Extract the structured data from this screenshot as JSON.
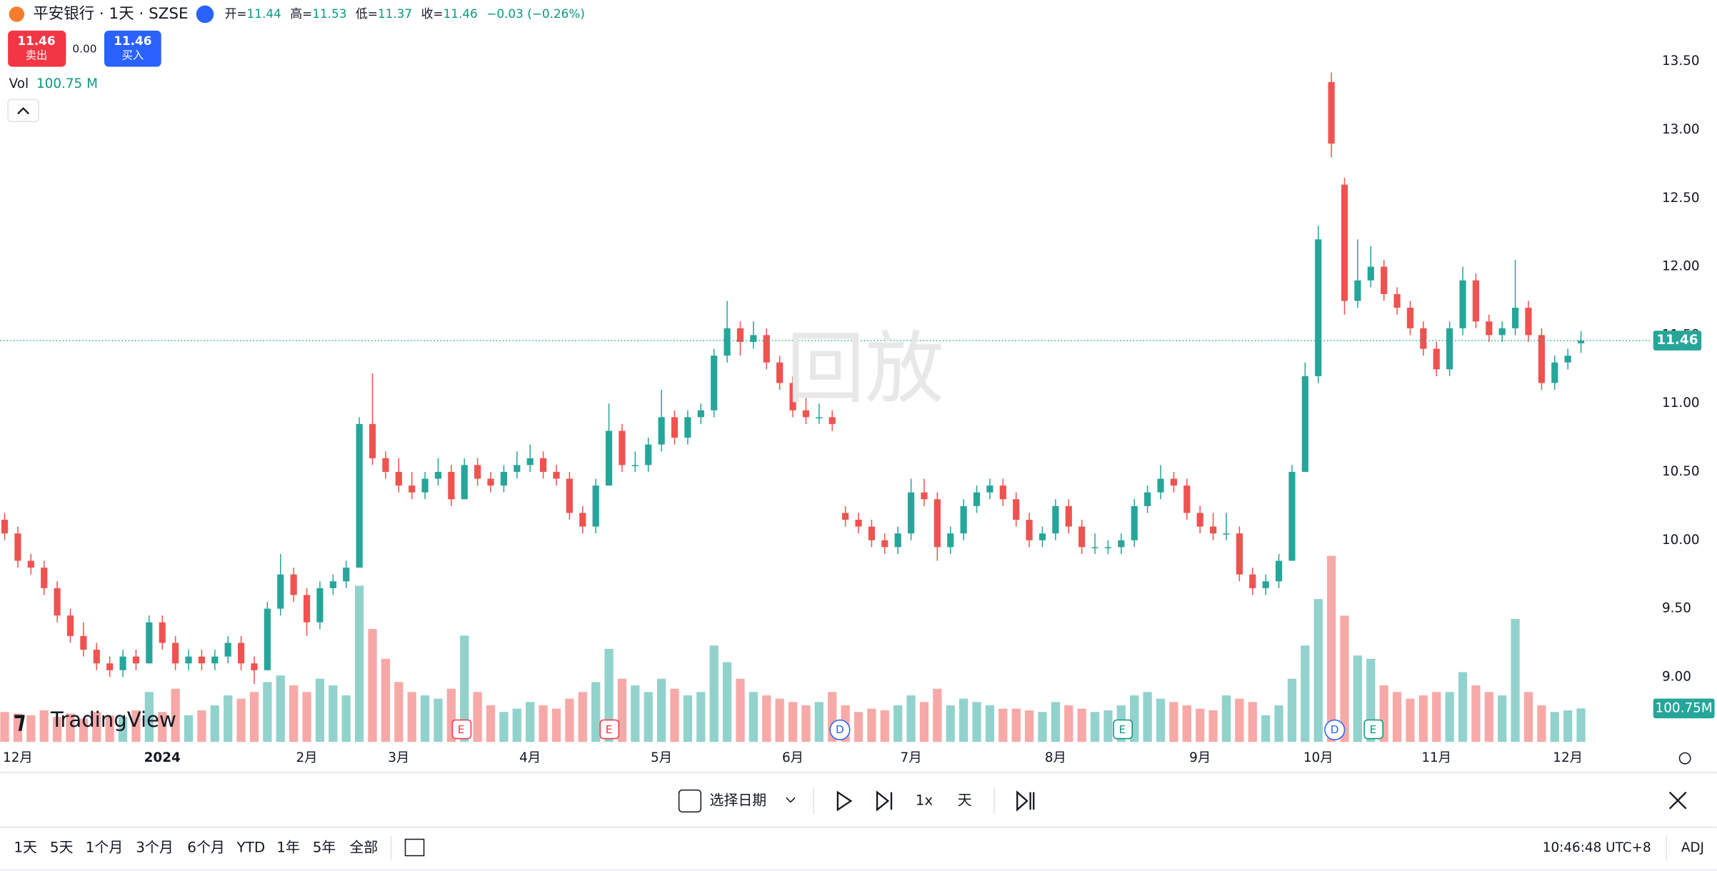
{
  "header": {
    "symbol": "平安银行 · 1天 · SZSE",
    "open_label": "开=",
    "open": 11.44,
    "high_label": "高=",
    "high": 11.53,
    "low_label": "低=",
    "low": 11.37,
    "close_label": "收=",
    "close": 11.46,
    "change": "−0.03 (−0.26%)"
  },
  "trade": {
    "sell_price": "11.46",
    "sell": "卖出",
    "spread": "0.00",
    "buy_price": "11.46",
    "buy": "买入"
  },
  "volume_legend": {
    "label": "Vol",
    "value": "100.75 M"
  },
  "watermark": "回放",
  "logo": "TradingView",
  "events": [
    "E",
    "E",
    "D",
    "E",
    "D",
    "E"
  ],
  "replay_toolbar": {
    "date_button": "选择日期",
    "speed": "1x",
    "interval": "天"
  },
  "ranges": [
    "1天",
    "5天",
    "1个月",
    "3个月",
    "6个月",
    "YTD",
    "1年",
    "5年",
    "全部"
  ],
  "clock": "10:46:48 UTC+8",
  "adj": "ADJ",
  "chart_data": {
    "type": "candlestick",
    "up_color": "#26a69a",
    "down_color": "#ef5350",
    "ylim": [
      8.51,
      13.95
    ],
    "yticks": [
      {
        "value": 13.5,
        "label": "13.50"
      },
      {
        "value": 13,
        "label": "13.00"
      },
      {
        "value": 12.5,
        "label": "12.50"
      },
      {
        "value": 12,
        "label": "12.00"
      },
      {
        "value": 11.5,
        "label": "11.50"
      },
      {
        "value": 11,
        "label": "11.00"
      },
      {
        "value": 10.5,
        "label": "10.50"
      },
      {
        "value": 10,
        "label": "10.00"
      },
      {
        "value": 9.5,
        "label": "9.50"
      },
      {
        "value": 9,
        "label": "9.00"
      }
    ],
    "last_price": 11.46,
    "last_volume_label": "100.75M",
    "categories": [
      null,
      "12月",
      null,
      null,
      null,
      null,
      null,
      null,
      null,
      null,
      null,
      null,
      "2024",
      null,
      null,
      null,
      null,
      null,
      null,
      null,
      null,
      null,
      null,
      "2月",
      null,
      null,
      null,
      null,
      null,
      null,
      "3月",
      null,
      null,
      null,
      null,
      null,
      null,
      null,
      null,
      null,
      "4月",
      null,
      null,
      null,
      null,
      null,
      null,
      null,
      null,
      null,
      "5月",
      null,
      null,
      null,
      null,
      null,
      null,
      null,
      null,
      null,
      "6月",
      null,
      null,
      null,
      null,
      null,
      null,
      null,
      null,
      "7月",
      null,
      null,
      null,
      null,
      null,
      null,
      null,
      null,
      null,
      null,
      "8月",
      null,
      null,
      null,
      null,
      null,
      null,
      null,
      null,
      null,
      null,
      "9月",
      null,
      null,
      null,
      null,
      null,
      null,
      null,
      null,
      "10月",
      null,
      null,
      null,
      null,
      null,
      null,
      null,
      null,
      "11月",
      null,
      null,
      null,
      null,
      null,
      null,
      null,
      null,
      null,
      "12月",
      null
    ],
    "candles": [
      [
        10.15,
        10.2,
        10.0,
        10.05
      ],
      [
        10.05,
        10.1,
        9.8,
        9.85
      ],
      [
        9.85,
        9.9,
        9.75,
        9.8
      ],
      [
        9.8,
        9.85,
        9.6,
        9.65
      ],
      [
        9.65,
        9.7,
        9.4,
        9.45
      ],
      [
        9.45,
        9.5,
        9.25,
        9.3
      ],
      [
        9.3,
        9.4,
        9.15,
        9.2
      ],
      [
        9.2,
        9.25,
        9.05,
        9.1
      ],
      [
        9.1,
        9.15,
        9.0,
        9.05
      ],
      [
        9.05,
        9.2,
        9.0,
        9.15
      ],
      [
        9.15,
        9.2,
        9.05,
        9.1
      ],
      [
        9.1,
        9.45,
        9.1,
        9.4
      ],
      [
        9.4,
        9.45,
        9.2,
        9.25
      ],
      [
        9.25,
        9.3,
        9.05,
        9.1
      ],
      [
        9.1,
        9.2,
        9.05,
        9.15
      ],
      [
        9.15,
        9.2,
        9.05,
        9.1
      ],
      [
        9.1,
        9.2,
        9.05,
        9.15
      ],
      [
        9.15,
        9.3,
        9.1,
        9.25
      ],
      [
        9.25,
        9.3,
        9.05,
        9.1
      ],
      [
        9.1,
        9.15,
        8.95,
        9.05
      ],
      [
        9.05,
        9.55,
        9.05,
        9.5
      ],
      [
        9.5,
        9.9,
        9.45,
        9.75
      ],
      [
        9.75,
        9.8,
        9.55,
        9.6
      ],
      [
        9.6,
        9.65,
        9.3,
        9.4
      ],
      [
        9.4,
        9.7,
        9.35,
        9.65
      ],
      [
        9.65,
        9.75,
        9.6,
        9.7
      ],
      [
        9.7,
        9.85,
        9.65,
        9.8
      ],
      [
        9.8,
        10.9,
        9.8,
        10.85
      ],
      [
        10.85,
        11.22,
        10.55,
        10.6
      ],
      [
        10.6,
        10.65,
        10.45,
        10.5
      ],
      [
        10.5,
        10.6,
        10.35,
        10.4
      ],
      [
        10.4,
        10.5,
        10.3,
        10.35
      ],
      [
        10.35,
        10.5,
        10.3,
        10.45
      ],
      [
        10.45,
        10.6,
        10.4,
        10.5
      ],
      [
        10.5,
        10.55,
        10.25,
        10.3
      ],
      [
        10.3,
        10.6,
        10.3,
        10.55
      ],
      [
        10.55,
        10.6,
        10.4,
        10.45
      ],
      [
        10.45,
        10.5,
        10.35,
        10.4
      ],
      [
        10.4,
        10.55,
        10.35,
        10.5
      ],
      [
        10.5,
        10.65,
        10.45,
        10.55
      ],
      [
        10.55,
        10.7,
        10.5,
        10.6
      ],
      [
        10.6,
        10.65,
        10.45,
        10.5
      ],
      [
        10.5,
        10.55,
        10.4,
        10.45
      ],
      [
        10.45,
        10.5,
        10.15,
        10.2
      ],
      [
        10.2,
        10.25,
        10.05,
        10.1
      ],
      [
        10.1,
        10.45,
        10.05,
        10.4
      ],
      [
        10.4,
        11.0,
        10.4,
        10.8
      ],
      [
        10.8,
        10.85,
        10.5,
        10.55
      ],
      [
        10.55,
        10.65,
        10.5,
        10.55
      ],
      [
        10.55,
        10.75,
        10.5,
        10.7
      ],
      [
        10.7,
        11.1,
        10.65,
        10.9
      ],
      [
        10.9,
        10.95,
        10.7,
        10.75
      ],
      [
        10.75,
        10.95,
        10.7,
        10.9
      ],
      [
        10.9,
        11.0,
        10.85,
        10.95
      ],
      [
        10.95,
        11.4,
        10.9,
        11.35
      ],
      [
        11.35,
        11.75,
        11.3,
        11.55
      ],
      [
        11.55,
        11.6,
        11.35,
        11.45
      ],
      [
        11.45,
        11.6,
        11.4,
        11.5
      ],
      [
        11.5,
        11.55,
        11.25,
        11.3
      ],
      [
        11.3,
        11.35,
        11.1,
        11.15
      ],
      [
        11.15,
        11.2,
        10.9,
        10.95
      ],
      [
        10.95,
        11.05,
        10.85,
        10.9
      ],
      [
        10.9,
        11.0,
        10.85,
        10.9
      ],
      [
        10.9,
        10.95,
        10.8,
        10.85
      ],
      [
        10.2,
        10.25,
        10.1,
        10.15
      ],
      [
        10.15,
        10.2,
        10.05,
        10.1
      ],
      [
        10.1,
        10.15,
        9.95,
        10.0
      ],
      [
        10.0,
        10.05,
        9.9,
        9.95
      ],
      [
        9.95,
        10.1,
        9.9,
        10.05
      ],
      [
        10.05,
        10.45,
        10.0,
        10.35
      ],
      [
        10.35,
        10.45,
        10.25,
        10.3
      ],
      [
        10.3,
        10.35,
        9.85,
        9.95
      ],
      [
        9.95,
        10.1,
        9.9,
        10.05
      ],
      [
        10.05,
        10.3,
        10.0,
        10.25
      ],
      [
        10.25,
        10.4,
        10.2,
        10.35
      ],
      [
        10.35,
        10.45,
        10.3,
        10.4
      ],
      [
        10.4,
        10.45,
        10.25,
        10.3
      ],
      [
        10.3,
        10.35,
        10.1,
        10.15
      ],
      [
        10.15,
        10.2,
        9.95,
        10.0
      ],
      [
        10.0,
        10.1,
        9.95,
        10.05
      ],
      [
        10.05,
        10.3,
        10.0,
        10.25
      ],
      [
        10.25,
        10.3,
        10.05,
        10.1
      ],
      [
        10.1,
        10.15,
        9.9,
        9.95
      ],
      [
        9.95,
        10.05,
        9.9,
        9.95
      ],
      [
        9.95,
        10.0,
        9.9,
        9.95
      ],
      [
        9.95,
        10.05,
        9.9,
        10.0
      ],
      [
        10.0,
        10.3,
        9.95,
        10.25
      ],
      [
        10.25,
        10.4,
        10.2,
        10.35
      ],
      [
        10.35,
        10.55,
        10.3,
        10.45
      ],
      [
        10.45,
        10.5,
        10.35,
        10.4
      ],
      [
        10.4,
        10.45,
        10.15,
        10.2
      ],
      [
        10.2,
        10.25,
        10.05,
        10.1
      ],
      [
        10.1,
        10.2,
        10.0,
        10.05
      ],
      [
        10.05,
        10.2,
        10.0,
        10.05
      ],
      [
        10.05,
        10.1,
        9.7,
        9.75
      ],
      [
        9.75,
        9.8,
        9.6,
        9.65
      ],
      [
        9.65,
        9.75,
        9.6,
        9.7
      ],
      [
        9.7,
        9.9,
        9.65,
        9.85
      ],
      [
        9.85,
        10.55,
        9.85,
        10.5
      ],
      [
        10.5,
        11.3,
        10.5,
        11.2
      ],
      [
        11.2,
        12.3,
        11.15,
        12.2
      ],
      [
        13.35,
        13.42,
        12.8,
        12.9
      ],
      [
        12.6,
        12.65,
        11.65,
        11.75
      ],
      [
        11.75,
        12.2,
        11.7,
        11.9
      ],
      [
        11.9,
        12.15,
        11.85,
        12.0
      ],
      [
        12.0,
        12.05,
        11.75,
        11.8
      ],
      [
        11.8,
        11.85,
        11.65,
        11.7
      ],
      [
        11.7,
        11.75,
        11.5,
        11.55
      ],
      [
        11.55,
        11.6,
        11.35,
        11.4
      ],
      [
        11.4,
        11.45,
        11.2,
        11.25
      ],
      [
        11.25,
        11.6,
        11.2,
        11.55
      ],
      [
        11.55,
        12.0,
        11.5,
        11.9
      ],
      [
        11.9,
        11.95,
        11.55,
        11.6
      ],
      [
        11.6,
        11.65,
        11.45,
        11.5
      ],
      [
        11.5,
        11.6,
        11.45,
        11.55
      ],
      [
        11.55,
        12.05,
        11.5,
        11.7
      ],
      [
        11.7,
        11.75,
        11.45,
        11.5
      ],
      [
        11.5,
        11.55,
        11.1,
        11.15
      ],
      [
        11.15,
        11.35,
        11.1,
        11.3
      ],
      [
        11.3,
        11.4,
        11.25,
        11.35
      ],
      [
        11.44,
        11.53,
        11.37,
        11.46
      ]
    ],
    "volumes": [
      90,
      85,
      80,
      95,
      75,
      85,
      70,
      90,
      80,
      75,
      95,
      150,
      90,
      160,
      80,
      95,
      110,
      140,
      130,
      150,
      180,
      200,
      170,
      150,
      190,
      170,
      140,
      470,
      340,
      250,
      180,
      150,
      140,
      130,
      160,
      320,
      150,
      110,
      90,
      100,
      120,
      110,
      100,
      130,
      150,
      180,
      280,
      190,
      170,
      150,
      190,
      160,
      140,
      150,
      290,
      240,
      190,
      150,
      140,
      130,
      120,
      110,
      120,
      150,
      110,
      90,
      100,
      95,
      110,
      140,
      120,
      160,
      110,
      130,
      120,
      110,
      100,
      100,
      95,
      90,
      120,
      110,
      100,
      90,
      95,
      110,
      140,
      150,
      130,
      120,
      110,
      100,
      95,
      140,
      130,
      120,
      80,
      110,
      190,
      290,
      430,
      560,
      380,
      260,
      250,
      170,
      150,
      130,
      140,
      150,
      150,
      210,
      170,
      150,
      140,
      370,
      150,
      110,
      90,
      95,
      100.75
    ]
  }
}
